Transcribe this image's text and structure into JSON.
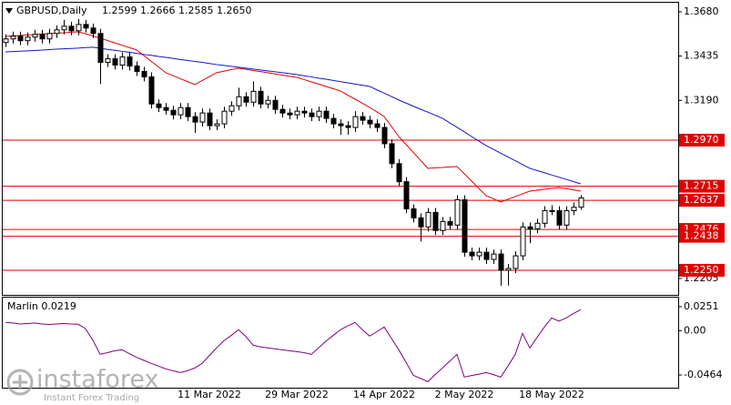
{
  "chart_data": {
    "type": "candlestick",
    "symbol": "GBPUSD,Daily",
    "quote": "1.2599 1.2666 1.2585 1.2650",
    "categories": [
      null,
      null,
      null,
      null,
      null,
      null,
      null,
      null,
      null,
      null,
      null,
      null,
      null,
      null,
      null,
      null,
      null,
      null,
      null,
      null,
      null,
      null,
      null,
      null,
      null,
      null,
      null,
      null,
      "11 Mar 2022",
      null,
      null,
      null,
      null,
      null,
      null,
      null,
      null,
      null,
      null,
      null,
      "29 Mar 2022",
      null,
      null,
      null,
      null,
      null,
      null,
      null,
      null,
      null,
      null,
      null,
      "14 Apr 2022",
      null,
      null,
      null,
      null,
      null,
      null,
      null,
      null,
      null,
      null,
      "2 May 2022",
      null,
      null,
      null,
      null,
      null,
      null,
      null,
      null,
      null,
      null,
      null,
      "18 May 2022",
      null,
      null,
      null,
      null
    ],
    "open": [
      1.351,
      1.353,
      1.3545,
      1.352,
      1.354,
      1.3555,
      1.353,
      1.356,
      1.358,
      1.36,
      1.3575,
      1.361,
      1.359,
      1.356,
      1.34,
      1.342,
      1.3385,
      1.343,
      1.338,
      1.335,
      1.332,
      1.317,
      1.315,
      1.3135,
      1.311,
      1.315,
      1.31,
      1.307,
      1.312,
      1.305,
      1.306,
      1.313,
      1.316,
      1.321,
      1.318,
      1.324,
      1.317,
      1.319,
      1.314,
      1.312,
      1.311,
      1.313,
      1.312,
      1.31,
      1.313,
      1.309,
      1.306,
      1.305,
      1.304,
      1.31,
      1.308,
      1.306,
      1.304,
      1.295,
      1.284,
      1.274,
      1.259,
      1.254,
      1.249,
      1.257,
      1.247,
      1.252,
      1.25,
      1.264,
      1.235,
      1.233,
      1.235,
      1.231,
      1.234,
      1.225,
      1.226,
      1.233,
      1.249,
      1.248,
      1.251,
      1.258,
      1.258,
      1.25,
      1.258,
      1.2599
    ],
    "high": [
      1.3555,
      1.357,
      1.357,
      1.3565,
      1.358,
      1.358,
      1.3585,
      1.3605,
      1.3635,
      1.3625,
      1.364,
      1.3635,
      1.3615,
      1.3585,
      1.3445,
      1.3445,
      1.3455,
      1.3455,
      1.3405,
      1.3375,
      1.3345,
      1.3195,
      1.3175,
      1.316,
      1.3175,
      1.3175,
      1.3125,
      1.3145,
      1.3145,
      1.3085,
      1.3155,
      1.3185,
      1.326,
      1.3235,
      1.3295,
      1.3265,
      1.3215,
      1.3215,
      1.3165,
      1.3145,
      1.3155,
      1.3155,
      1.3145,
      1.3155,
      1.3155,
      1.3115,
      1.3085,
      1.3075,
      1.313,
      1.3125,
      1.3105,
      1.3085,
      1.3065,
      1.2975,
      1.2865,
      1.2765,
      1.2615,
      1.2565,
      1.2595,
      1.2595,
      1.2545,
      1.2545,
      1.2665,
      1.2665,
      1.2375,
      1.2375,
      1.2375,
      1.2365,
      1.2365,
      1.2285,
      1.2355,
      1.2515,
      1.2515,
      1.2535,
      1.2605,
      1.261,
      1.2605,
      1.2605,
      1.2625,
      1.2666
    ],
    "low": [
      1.3485,
      1.3505,
      1.3495,
      1.3495,
      1.3515,
      1.3505,
      1.3505,
      1.3535,
      1.3555,
      1.355,
      1.355,
      1.3565,
      1.3535,
      1.328,
      1.3375,
      1.336,
      1.336,
      1.3355,
      1.3325,
      1.3295,
      1.3145,
      1.3125,
      1.311,
      1.3085,
      1.3085,
      1.3075,
      1.301,
      1.3045,
      1.3025,
      1.3025,
      1.3035,
      1.3105,
      1.3135,
      1.3155,
      1.3155,
      1.3145,
      1.3145,
      1.3115,
      1.3095,
      1.3085,
      1.3085,
      1.3095,
      1.3075,
      1.3075,
      1.3065,
      1.3035,
      1.3,
      1.3,
      1.3015,
      1.3055,
      1.3035,
      1.3015,
      1.2925,
      1.2815,
      1.2715,
      1.2565,
      1.2515,
      1.241,
      1.2465,
      1.2445,
      1.2445,
      1.2475,
      1.2475,
      1.2325,
      1.2305,
      1.2305,
      1.2285,
      1.2285,
      1.2165,
      1.2165,
      1.2235,
      1.2305,
      1.24,
      1.2455,
      1.2485,
      1.2555,
      1.2475,
      1.2475,
      1.2555,
      1.2585
    ],
    "close": [
      1.353,
      1.3545,
      1.352,
      1.354,
      1.3555,
      1.353,
      1.356,
      1.358,
      1.36,
      1.3575,
      1.361,
      1.359,
      1.356,
      1.34,
      1.342,
      1.3385,
      1.343,
      1.338,
      1.335,
      1.332,
      1.317,
      1.315,
      1.3135,
      1.311,
      1.315,
      1.31,
      1.307,
      1.312,
      1.305,
      1.306,
      1.313,
      1.316,
      1.321,
      1.318,
      1.324,
      1.317,
      1.319,
      1.314,
      1.312,
      1.311,
      1.313,
      1.312,
      1.31,
      1.313,
      1.309,
      1.306,
      1.305,
      1.304,
      1.31,
      1.308,
      1.306,
      1.304,
      1.295,
      1.284,
      1.274,
      1.259,
      1.254,
      1.249,
      1.257,
      1.247,
      1.252,
      1.25,
      1.264,
      1.235,
      1.233,
      1.235,
      1.231,
      1.234,
      1.225,
      1.226,
      1.233,
      1.249,
      1.248,
      1.251,
      1.258,
      1.258,
      1.25,
      1.258,
      1.2599,
      1.265
    ],
    "ma_lines": [
      {
        "color": "#e00000",
        "values": [
          1.3544,
          1.3547,
          1.3549,
          1.3552,
          1.3554,
          1.3557,
          1.3559,
          1.3562,
          1.3564,
          1.3567,
          1.3569,
          1.3558,
          1.3546,
          1.3534,
          1.3521,
          1.3508,
          1.3495,
          1.3482,
          1.3469,
          1.3438,
          1.3406,
          1.3375,
          1.3343,
          1.3327,
          1.331,
          1.3294,
          1.3277,
          1.3299,
          1.3321,
          1.3343,
          1.3351,
          1.336,
          1.3368,
          1.3362,
          1.3355,
          1.3349,
          1.3343,
          1.3336,
          1.333,
          1.3323,
          1.3317,
          1.3305,
          1.3292,
          1.328,
          1.3267,
          1.3255,
          1.3242,
          1.3219,
          1.3197,
          1.3174,
          1.3151,
          1.3126,
          1.3101,
          1.3046,
          1.299,
          1.2946,
          1.2902,
          1.2858,
          1.2814,
          1.2817,
          1.2819,
          1.2822,
          1.2824,
          1.2784,
          1.2744,
          1.2703,
          1.2663,
          1.2646,
          1.2628,
          1.2643,
          1.2658,
          1.2673,
          1.2688,
          1.2693,
          1.2698,
          1.2703,
          1.2708,
          1.2701,
          1.2695,
          1.2688
        ]
      },
      {
        "color": "#1414c8",
        "values": [
          1.3458,
          1.346,
          1.3462,
          1.3464,
          1.3466,
          1.3468,
          1.3471,
          1.3473,
          1.3475,
          1.3477,
          1.3479,
          1.3482,
          1.3484,
          1.3478,
          1.3472,
          1.3467,
          1.3461,
          1.3456,
          1.345,
          1.3444,
          1.3439,
          1.3433,
          1.3428,
          1.3422,
          1.3416,
          1.3411,
          1.3405,
          1.34,
          1.3394,
          1.3388,
          1.3383,
          1.3378,
          1.3373,
          1.3368,
          1.3363,
          1.3358,
          1.3353,
          1.3348,
          1.3343,
          1.3338,
          1.3333,
          1.3326,
          1.332,
          1.3313,
          1.3307,
          1.33,
          1.3293,
          1.3287,
          1.328,
          1.3274,
          1.3267,
          1.3248,
          1.323,
          1.3211,
          1.3192,
          1.3175,
          1.3158,
          1.3141,
          1.3125,
          1.3108,
          1.3091,
          1.3066,
          1.3041,
          1.3016,
          1.299,
          1.2965,
          1.294,
          1.2919,
          1.2898,
          1.2877,
          1.2856,
          1.2835,
          1.2814,
          1.2802,
          1.279,
          1.2777,
          1.2765,
          1.2753,
          1.274,
          1.2728
        ]
      }
    ],
    "level_color": "#e00000",
    "levels": [
      {
        "value": 1.297,
        "label": "1.2970"
      },
      {
        "value": 1.2715,
        "label": "1.2715"
      },
      {
        "value": 1.2637,
        "label": "1.2637"
      },
      {
        "value": 1.2476,
        "label": "1.2476"
      },
      {
        "value": 1.2438,
        "label": "1.2438"
      },
      {
        "value": 1.225,
        "label": "1.2250"
      }
    ],
    "ylim": [
      1.2114,
      1.373
    ],
    "yticks": [
      {
        "value": 1.368,
        "label": "1.3680"
      },
      {
        "value": 1.3435,
        "label": "1.3435"
      },
      {
        "value": 1.319,
        "label": "1.3190"
      },
      {
        "value": 1.2205,
        "label": "1.2205"
      }
    ],
    "indicator": {
      "type": "line",
      "title": "Marlin 0.0219",
      "color": "#800080",
      "ylim": [
        -0.0597,
        0.0346
      ],
      "yticks": [
        {
          "value": 0.0251,
          "label": "0.0251"
        },
        {
          "value": 0,
          "label": "0.00"
        },
        {
          "value": -0.0464,
          "label": "-0.0464"
        }
      ],
      "values": [
        0.0086,
        0.008,
        0.007,
        0.0075,
        0.008,
        0.007,
        0.0065,
        0.007,
        0.0075,
        0.007,
        0.0067,
        0.002,
        -0.01,
        -0.0248,
        -0.023,
        -0.021,
        -0.02,
        -0.024,
        -0.028,
        -0.031,
        -0.0343,
        -0.037,
        -0.04,
        -0.042,
        -0.0439,
        -0.042,
        -0.039,
        -0.0343,
        -0.026,
        -0.018,
        -0.0105,
        -0.005,
        0.001,
        -0.006,
        -0.0152,
        -0.017,
        -0.018,
        -0.019,
        -0.02,
        -0.021,
        -0.022,
        -0.023,
        -0.0248,
        -0.018,
        -0.011,
        -0.005,
        0.001,
        0.005,
        0.0086,
        0.001,
        -0.0057,
        -0.001,
        0.0038,
        -0.008,
        -0.02,
        -0.033,
        -0.0467,
        -0.05,
        -0.0534,
        -0.046,
        -0.0391,
        -0.032,
        -0.0248,
        -0.0486,
        -0.047,
        -0.0455,
        -0.0439,
        -0.046,
        -0.0486,
        -0.037,
        -0.0248,
        -0.0029,
        -0.0181,
        -0.007,
        0.0038,
        0.0133,
        0.01,
        0.0133,
        0.018,
        0.0219
      ]
    },
    "watermark": {
      "brand": "instaforex",
      "tagline": "Instant Forex Trading"
    }
  }
}
